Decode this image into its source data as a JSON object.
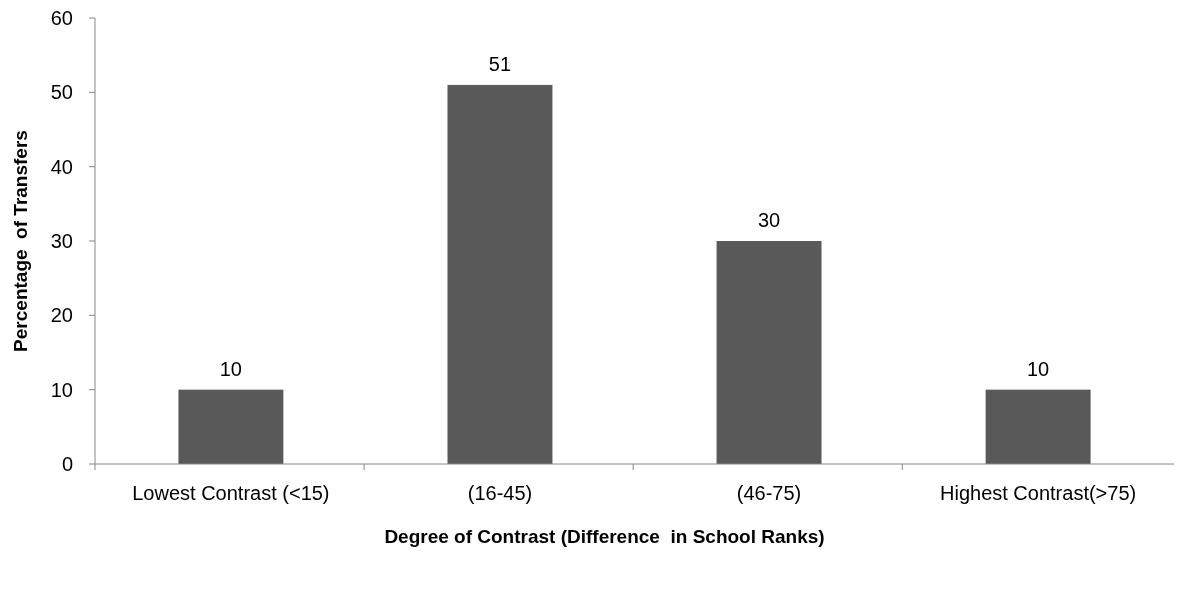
{
  "chart_data": {
    "type": "bar",
    "xlabel": "Degree of Contrast (Difference  in School Ranks)",
    "ylabel": "Percentage  of Transfers",
    "categories": [
      "Lowest Contrast (<15)",
      "(16-45)",
      "(46-75)",
      "Highest Contrast(>75)"
    ],
    "values": [
      10,
      51,
      30,
      10
    ],
    "color": "#595959",
    "ylim": [
      0,
      60
    ],
    "yticks": [
      0,
      10,
      20,
      30,
      40,
      50,
      60
    ],
    "data_labels": true
  }
}
